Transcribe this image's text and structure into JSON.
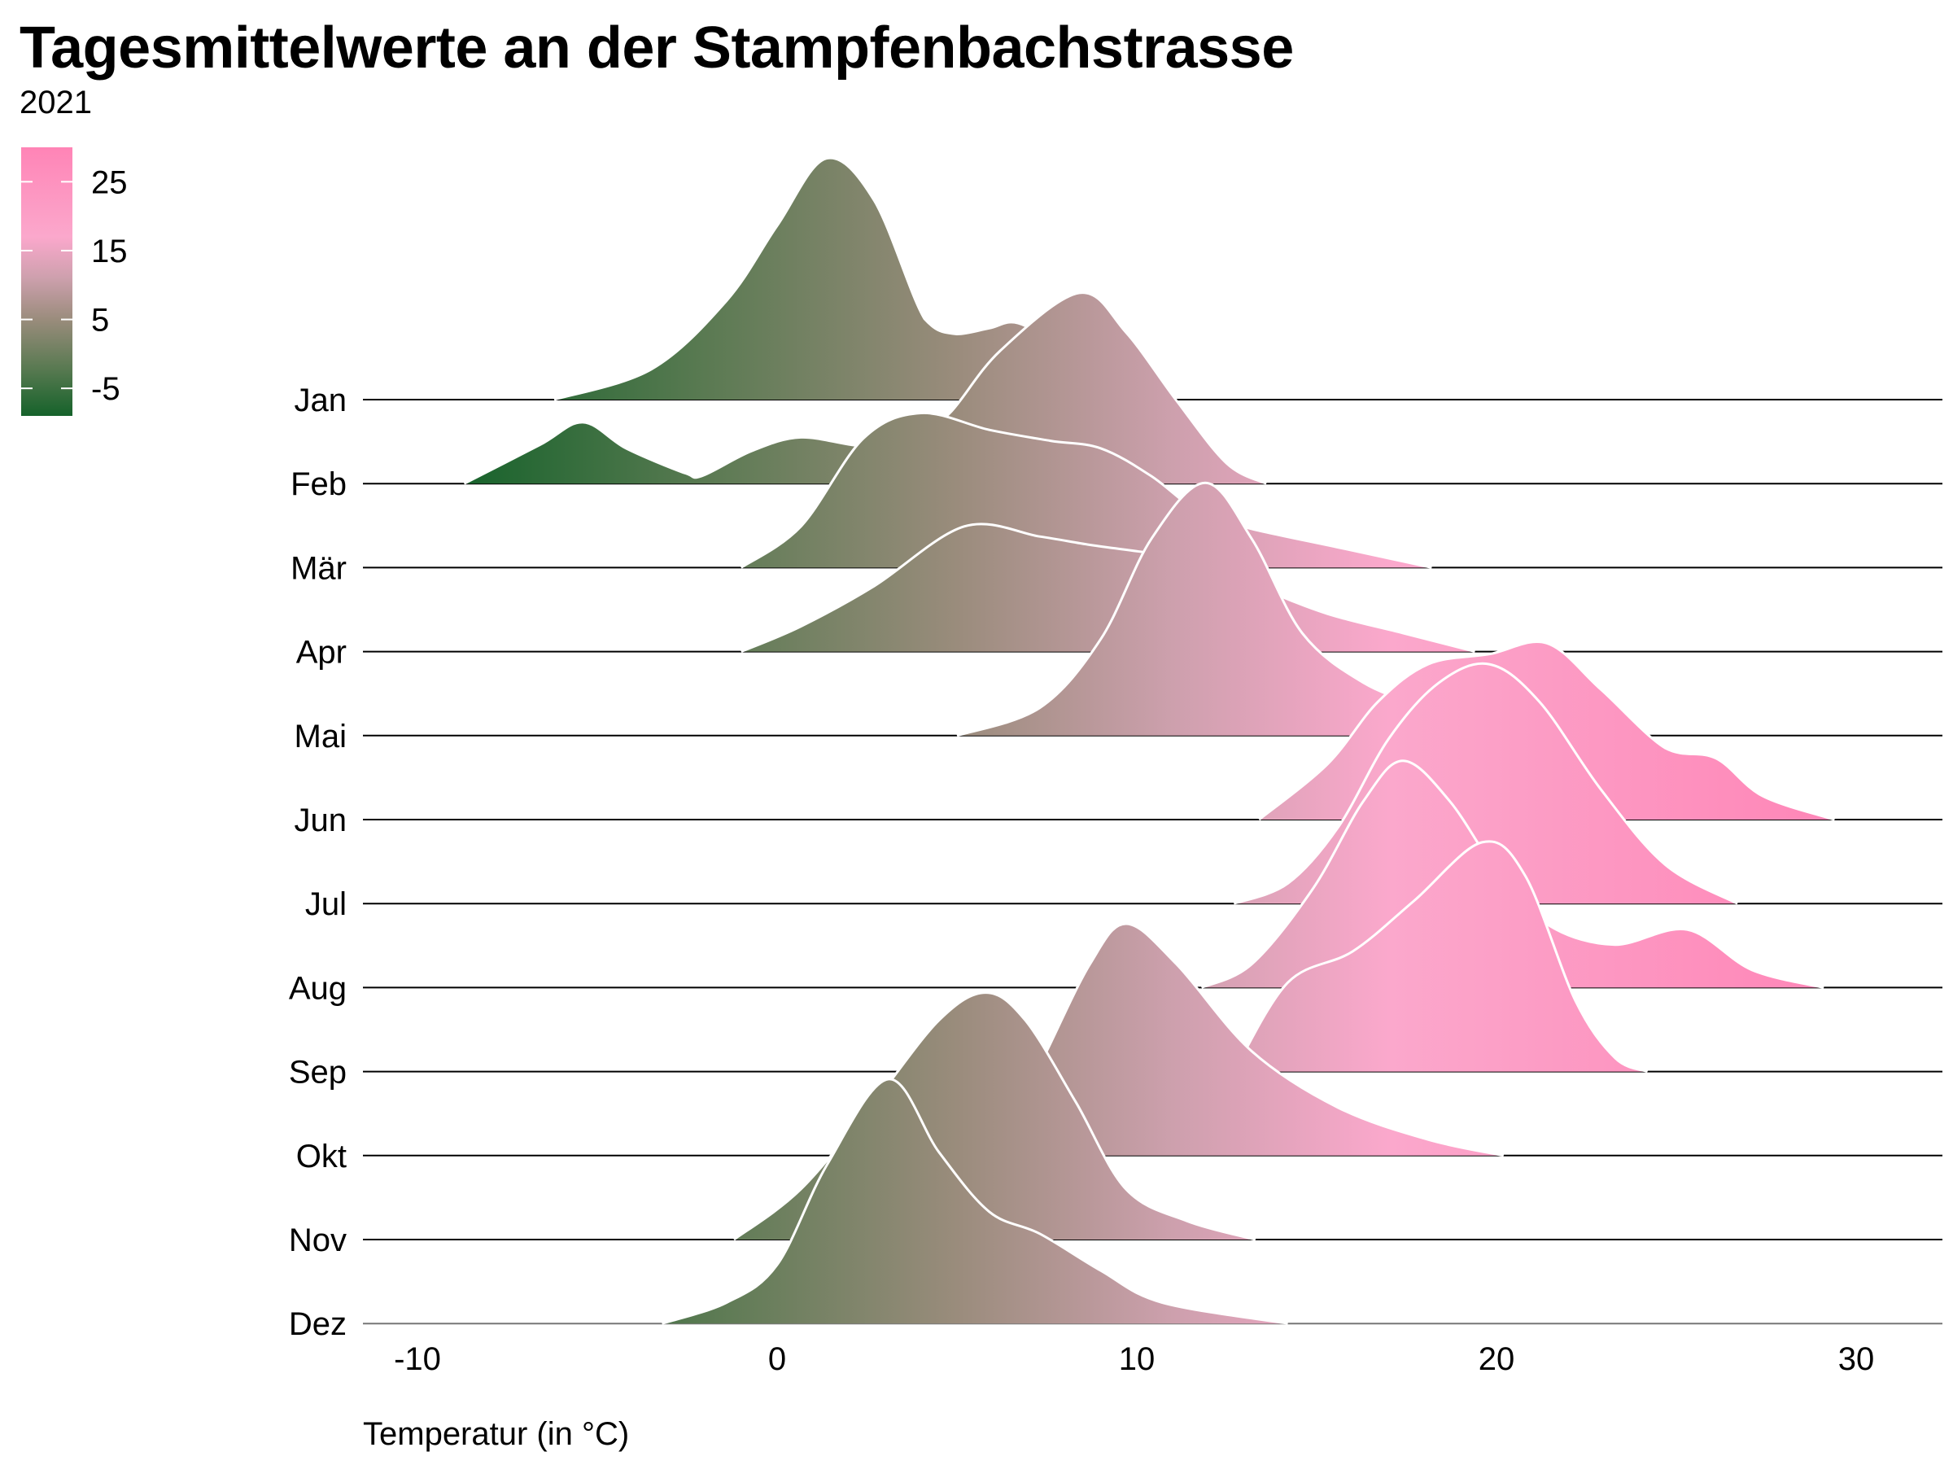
{
  "chart_data": {
    "type": "ridgeline",
    "title": "Tagesmittelwerte an der Stampfenbachstrasse",
    "subtitle": "2021",
    "xlabel": "Temperatur (in °C)",
    "xlim": [
      -11.5,
      32
    ],
    "xticks": [
      "-10",
      "0",
      "10",
      "20",
      "30"
    ],
    "xtick_values": [
      -10,
      0,
      10,
      20,
      30
    ],
    "grid": false,
    "legend": {
      "placement": "top-left",
      "type": "colorbar",
      "ticks": [
        "25",
        "15",
        "5",
        "-5"
      ],
      "tick_values": [
        25,
        15,
        5,
        -5
      ],
      "range": [
        -9,
        30
      ],
      "stops": [
        {
          "value": -9,
          "color": "#15622a"
        },
        {
          "value": -2,
          "color": "#5a7a52"
        },
        {
          "value": 5,
          "color": "#9a8c7c"
        },
        {
          "value": 11,
          "color": "#cda0ad"
        },
        {
          "value": 17,
          "color": "#fba8cc"
        },
        {
          "value": 30,
          "color": "#ff84b6"
        }
      ]
    },
    "density_unit": "relative ridge height (1 = row spacing)",
    "series": [
      {
        "name": "Jan",
        "points": [
          [
            -6.2,
            0
          ],
          [
            -3.5,
            0.36
          ],
          [
            -1.4,
            1.18
          ],
          [
            0,
            2.07
          ],
          [
            1.36,
            2.87
          ],
          [
            2.7,
            2.37
          ],
          [
            4.1,
            0.96
          ],
          [
            5.0,
            0.78
          ],
          [
            5.9,
            0.85
          ],
          [
            6.7,
            0.91
          ],
          [
            8,
            0.6
          ],
          [
            9.5,
            0.2
          ],
          [
            11,
            0
          ]
        ]
      },
      {
        "name": "Feb",
        "points": [
          [
            -8.7,
            0
          ],
          [
            -6.6,
            0.46
          ],
          [
            -5.4,
            0.73
          ],
          [
            -4.2,
            0.42
          ],
          [
            -2.6,
            0.13
          ],
          [
            -2.1,
            0.09
          ],
          [
            -0.7,
            0.39
          ],
          [
            0.66,
            0.55
          ],
          [
            2.4,
            0.45
          ],
          [
            3.8,
            0.55
          ],
          [
            4.8,
            0.84
          ],
          [
            6.2,
            1.58
          ],
          [
            8.4,
            2.27
          ],
          [
            9.7,
            1.8
          ],
          [
            11.1,
            0.99
          ],
          [
            12.5,
            0.24
          ],
          [
            13.6,
            0
          ]
        ]
      },
      {
        "name": "Mär",
        "points": [
          [
            -1.0,
            0
          ],
          [
            0.66,
            0.49
          ],
          [
            2.4,
            1.54
          ],
          [
            4.0,
            1.84
          ],
          [
            5.9,
            1.64
          ],
          [
            7.6,
            1.51
          ],
          [
            9.0,
            1.42
          ],
          [
            10.4,
            1.09
          ],
          [
            11.8,
            0.64
          ],
          [
            13.2,
            0.46
          ],
          [
            15.6,
            0.24
          ],
          [
            18.2,
            0
          ]
        ]
      },
      {
        "name": "Apr",
        "points": [
          [
            -1.0,
            0
          ],
          [
            0.66,
            0.3
          ],
          [
            2.7,
            0.78
          ],
          [
            5.2,
            1.49
          ],
          [
            7.3,
            1.37
          ],
          [
            8.7,
            1.27
          ],
          [
            10.1,
            1.19
          ],
          [
            11.8,
            1.09
          ],
          [
            13.5,
            0.75
          ],
          [
            15.3,
            0.45
          ],
          [
            17.4,
            0.22
          ],
          [
            19.4,
            0
          ]
        ]
      },
      {
        "name": "Mai",
        "points": [
          [
            5.0,
            0
          ],
          [
            7.3,
            0.33
          ],
          [
            9.0,
            1.15
          ],
          [
            10.4,
            2.34
          ],
          [
            11.9,
            3.01
          ],
          [
            13.2,
            2.34
          ],
          [
            14.6,
            1.22
          ],
          [
            16.3,
            0.63
          ],
          [
            18.1,
            0.33
          ],
          [
            19.8,
            0.1
          ],
          [
            20.8,
            0
          ]
        ]
      },
      {
        "name": "Jun",
        "points": [
          [
            13.4,
            0
          ],
          [
            15.3,
            0.66
          ],
          [
            16.7,
            1.4
          ],
          [
            18.1,
            1.85
          ],
          [
            19.8,
            1.97
          ],
          [
            21.4,
            2.1
          ],
          [
            22.9,
            1.55
          ],
          [
            24.7,
            0.85
          ],
          [
            26.1,
            0.73
          ],
          [
            27.4,
            0.28
          ],
          [
            29.4,
            0
          ]
        ]
      },
      {
        "name": "Jul",
        "points": [
          [
            12.7,
            0
          ],
          [
            14.2,
            0.24
          ],
          [
            15.6,
            0.91
          ],
          [
            17.0,
            1.96
          ],
          [
            18.4,
            2.63
          ],
          [
            19.8,
            2.85
          ],
          [
            21.2,
            2.4
          ],
          [
            22.9,
            1.36
          ],
          [
            24.7,
            0.46
          ],
          [
            26.7,
            0
          ]
        ]
      },
      {
        "name": "Aug",
        "points": [
          [
            11.8,
            0
          ],
          [
            13.2,
            0.28
          ],
          [
            14.9,
            1.18
          ],
          [
            16.3,
            2.22
          ],
          [
            17.4,
            2.7
          ],
          [
            18.7,
            2.22
          ],
          [
            20.1,
            1.33
          ],
          [
            21.5,
            0.73
          ],
          [
            23.3,
            0.51
          ],
          [
            25.3,
            0.69
          ],
          [
            27.1,
            0.21
          ],
          [
            29.1,
            0
          ]
        ]
      },
      {
        "name": "Sep",
        "points": [
          [
            12.7,
            0
          ],
          [
            14.2,
            1.06
          ],
          [
            16.0,
            1.43
          ],
          [
            17.7,
            2.03
          ],
          [
            19.6,
            2.73
          ],
          [
            20.8,
            2.33
          ],
          [
            22.2,
            0.84
          ],
          [
            23.3,
            0.16
          ],
          [
            24.2,
            0
          ]
        ]
      },
      {
        "name": "Okt",
        "points": [
          [
            5.5,
            0
          ],
          [
            6.5,
            0.4
          ],
          [
            7.4,
            1.16
          ],
          [
            8.7,
            2.28
          ],
          [
            9.7,
            2.76
          ],
          [
            11.1,
            2.28
          ],
          [
            13.2,
            1.24
          ],
          [
            15.6,
            0.57
          ],
          [
            18.1,
            0.19
          ],
          [
            20.2,
            0
          ]
        ]
      },
      {
        "name": "Nov",
        "points": [
          [
            -1.2,
            0
          ],
          [
            0.66,
            0.6
          ],
          [
            2.7,
            1.64
          ],
          [
            4.5,
            2.61
          ],
          [
            5.8,
            2.94
          ],
          [
            6.9,
            2.61
          ],
          [
            8.3,
            1.64
          ],
          [
            9.7,
            0.6
          ],
          [
            11.4,
            0.22
          ],
          [
            13.3,
            0
          ]
        ]
      },
      {
        "name": "Dez",
        "points": [
          [
            -3.2,
            0
          ],
          [
            -1.4,
            0.25
          ],
          [
            0,
            0.7
          ],
          [
            1.4,
            1.9
          ],
          [
            3.1,
            2.91
          ],
          [
            4.5,
            2.04
          ],
          [
            5.9,
            1.33
          ],
          [
            7.3,
            1.07
          ],
          [
            9.0,
            0.63
          ],
          [
            10.7,
            0.25
          ],
          [
            14.2,
            0
          ]
        ]
      }
    ]
  }
}
